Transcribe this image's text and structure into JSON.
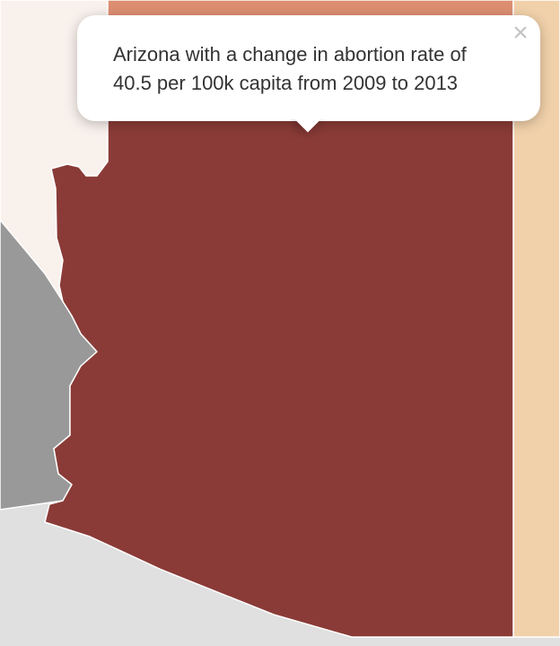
{
  "map": {
    "selected_state": {
      "name": "Arizona",
      "fill": "#8a3b37"
    },
    "neighbors": [
      {
        "name": "Utah",
        "fill": "#dd8e71"
      },
      {
        "name": "New Mexico",
        "fill": "#f1d1aa"
      },
      {
        "name": "Nevada",
        "fill": "#f9f1ec"
      },
      {
        "name": "California",
        "fill": "#999999"
      }
    ],
    "background_color": "#e0e0e0"
  },
  "popup": {
    "text": "Arizona with a change in abortion rate of 40.5 per 100k capita from 2009 to 2013",
    "close_symbol": "×"
  }
}
